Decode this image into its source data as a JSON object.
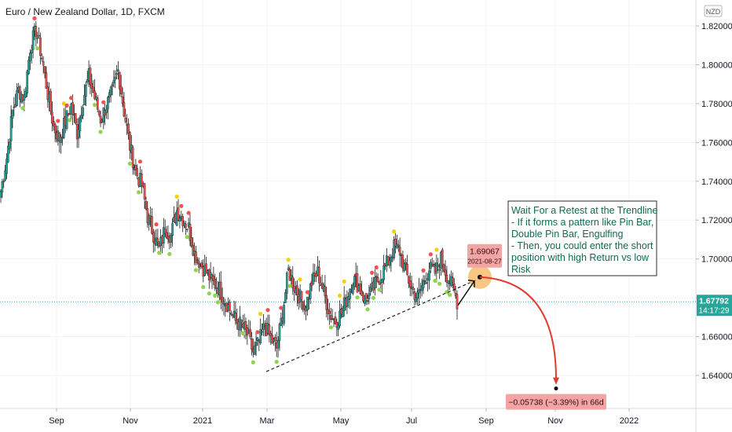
{
  "header": {
    "title": "Euro / New Zealand Dollar, 1D, FXCM",
    "currency_badge": "NZD"
  },
  "chart_data": {
    "type": "candlestick",
    "title": "Euro / New Zealand Dollar, 1D, FXCM",
    "x_ticks": [
      "Sep",
      "Nov",
      "2021",
      "Mar",
      "May",
      "Jul",
      "Sep",
      "Nov",
      "2022"
    ],
    "y_ticks": [
      "1.82000",
      "1.80000",
      "1.78000",
      "1.76000",
      "1.74000",
      "1.72000",
      "1.70000",
      "1.68000",
      "1.66000",
      "1.64000"
    ],
    "ylim": [
      1.626,
      1.826
    ],
    "grid": true,
    "colors": {
      "up": "#26a69a",
      "down": "#ef5350",
      "dot_red": "#ef5350",
      "dot_yellow": "#f5d000",
      "dot_green": "#8ed44d",
      "arrow": "#e23b2f",
      "note_bg": "#ffffff",
      "note_border": "#333333"
    },
    "path": [
      [
        1.735,
        2
      ],
      [
        1.752,
        2
      ],
      [
        1.776,
        2
      ],
      [
        1.787,
        2
      ],
      [
        1.783,
        2
      ],
      [
        1.809,
        2
      ],
      [
        1.818,
        2
      ],
      [
        1.804,
        2
      ],
      [
        1.785,
        2
      ],
      [
        1.768,
        2
      ],
      [
        1.762,
        2
      ],
      [
        1.771,
        2
      ],
      [
        1.779,
        2
      ],
      [
        1.765,
        2
      ],
      [
        1.782,
        2
      ],
      [
        1.794,
        2
      ],
      [
        1.783,
        2
      ],
      [
        1.772,
        2
      ],
      [
        1.779,
        2
      ],
      [
        1.786,
        2
      ],
      [
        1.797,
        2
      ],
      [
        1.776,
        2
      ],
      [
        1.758,
        2
      ],
      [
        1.745,
        2
      ],
      [
        1.738,
        2
      ],
      [
        1.722,
        2
      ],
      [
        1.713,
        2
      ],
      [
        1.705,
        2
      ],
      [
        1.716,
        2
      ],
      [
        1.712,
        2
      ],
      [
        1.725,
        2
      ],
      [
        1.721,
        2
      ],
      [
        1.716,
        2
      ],
      [
        1.703,
        2
      ],
      [
        1.698,
        2
      ],
      [
        1.693,
        2
      ],
      [
        1.688,
        2
      ],
      [
        1.686,
        2
      ],
      [
        1.68,
        2
      ],
      [
        1.674,
        2
      ],
      [
        1.668,
        2
      ],
      [
        1.666,
        2
      ],
      [
        1.661,
        2
      ],
      [
        1.652,
        2
      ],
      [
        1.657,
        2
      ],
      [
        1.666,
        2
      ],
      [
        1.659,
        2
      ],
      [
        1.654,
        2
      ],
      [
        1.672,
        2
      ],
      [
        1.694,
        2
      ],
      [
        1.686,
        2
      ],
      [
        1.68,
        2
      ],
      [
        1.676,
        2
      ],
      [
        1.688,
        2
      ],
      [
        1.693,
        2
      ],
      [
        1.683,
        2
      ],
      [
        1.672,
        2
      ],
      [
        1.668,
        2
      ],
      [
        1.672,
        2
      ],
      [
        1.681,
        2
      ],
      [
        1.69,
        2
      ],
      [
        1.686,
        2
      ],
      [
        1.679,
        2
      ],
      [
        1.682,
        2
      ],
      [
        1.688,
        2
      ],
      [
        1.693,
        2
      ],
      [
        1.699,
        2
      ],
      [
        1.706,
        2
      ],
      [
        1.704,
        2
      ],
      [
        1.693,
        2
      ],
      [
        1.685,
        2
      ],
      [
        1.68,
        2
      ],
      [
        1.688,
        2
      ],
      [
        1.695,
        2
      ],
      [
        1.693,
        2
      ],
      [
        1.7,
        2
      ],
      [
        1.692,
        2
      ],
      [
        1.685,
        2
      ],
      [
        1.676,
        2
      ]
    ],
    "last_price": "1.67792",
    "last_time": "14:17:29",
    "trendline": {
      "from": [
        "2021-02-24",
        1.642
      ],
      "to": [
        "2021-08-27",
        1.69
      ]
    },
    "target_label": {
      "price": "1.69067",
      "date": "2021-08-27"
    },
    "projection": {
      "label": "−0.05738 (−3.39%) in 66d",
      "from": [
        "2021-08-27",
        1.69067
      ],
      "to": [
        "2021-11-01",
        1.6333
      ]
    },
    "annotation": [
      "Wait For a Retest at the Trendline",
      "- If it forms a pattern like Pin Bar,",
      "Double Pin Bar, Engulfing",
      "- Then, you could enter the short",
      "position with high Return vs low",
      "Risk"
    ]
  }
}
